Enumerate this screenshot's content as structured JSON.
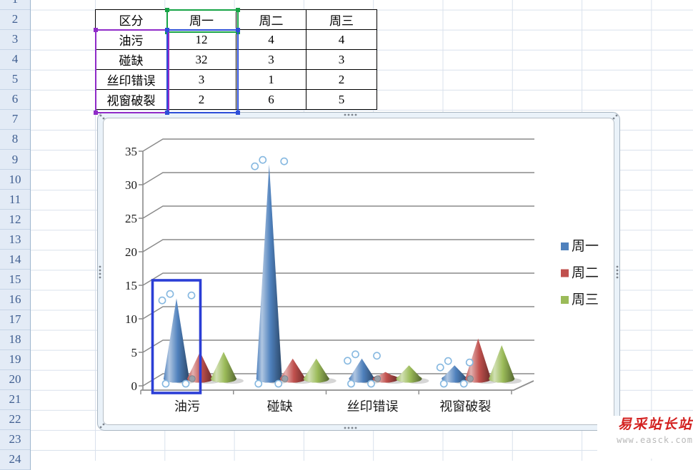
{
  "sheet": {
    "row_numbers": [
      "1",
      "2",
      "3",
      "4",
      "5",
      "6",
      "7",
      "8",
      "9",
      "10",
      "11",
      "12",
      "13",
      "14",
      "15",
      "16",
      "17",
      "18",
      "19",
      "20",
      "21",
      "22",
      "23",
      "24"
    ]
  },
  "table": {
    "cells": [
      [
        "区分",
        "周一",
        "周二",
        "周三"
      ],
      [
        "油污",
        "12",
        "4",
        "4"
      ],
      [
        "碰缺",
        "32",
        "3",
        "3"
      ],
      [
        "丝印错误",
        "3",
        "1",
        "2"
      ],
      [
        "视窗破裂",
        "2",
        "6",
        "5"
      ]
    ]
  },
  "chart_data": {
    "type": "bar",
    "shape": "cone-3d",
    "title": "",
    "xlabel": "",
    "ylabel": "",
    "categories": [
      "油污",
      "碰缺",
      "丝印错误",
      "视窗破裂"
    ],
    "series": [
      {
        "name": "周一",
        "color": "#4F81BD",
        "values": [
          12,
          32,
          3,
          2
        ]
      },
      {
        "name": "周二",
        "color": "#C0504D",
        "values": [
          4,
          3,
          1,
          6
        ]
      },
      {
        "name": "周三",
        "color": "#9BBB59",
        "values": [
          4,
          3,
          2,
          5
        ]
      }
    ],
    "ylim": [
      0,
      35
    ],
    "ytick_step": 5,
    "yticks": [
      "0",
      "5",
      "10",
      "15",
      "20",
      "25",
      "30",
      "35"
    ],
    "legend_position": "right",
    "grid": true,
    "selection": {
      "series_index": 0,
      "point_index": 0
    }
  },
  "watermark": {
    "title": "易采站长站",
    "url": "www.easck.com"
  },
  "colors": {
    "range_name_green": "#17a346",
    "range_category_purple": "#8f2bc8",
    "range_values_blue": "#2d4ed8",
    "point_selection_blue": "#2b3ed6",
    "gridline_gray": "#8a8a8a",
    "header_bg": "#e3ebf6"
  }
}
